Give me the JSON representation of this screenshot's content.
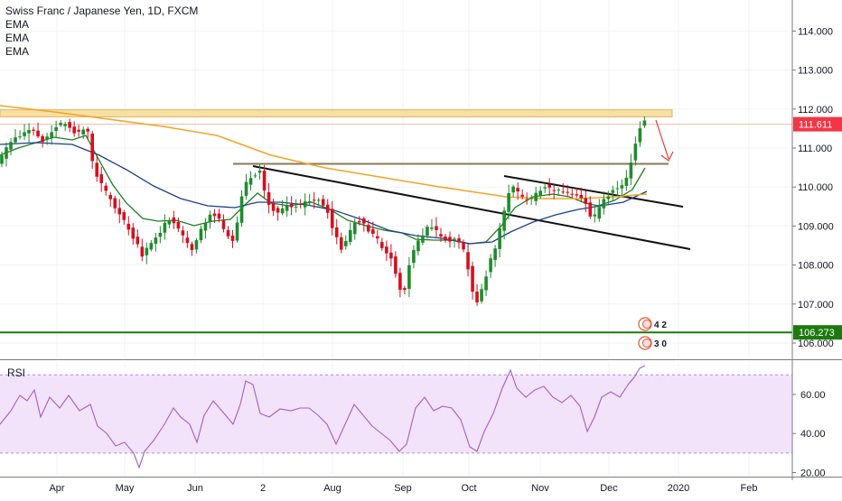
{
  "chart_data": {
    "type": "candlestick",
    "title": "Swiss Franc / Japanese Yen, 1D, FXCM",
    "indicators": [
      "EMA",
      "EMA",
      "EMA"
    ],
    "price_axis": {
      "range": [
        105.75,
        115.0
      ],
      "ticks": [
        "114.000",
        "113.000",
        "112.000",
        "111.000",
        "110.000",
        "109.000",
        "108.000",
        "107.000",
        "106.000"
      ],
      "current_price": {
        "label": "111.611",
        "value": 111.611,
        "color": "#f23645"
      },
      "level": {
        "label": "106.273",
        "value": 106.273,
        "color": "#1b7a0e"
      }
    },
    "time_axis": {
      "labels": [
        "Apr",
        "May",
        "Jun",
        "2",
        "Aug",
        "Sep",
        "Oct",
        "Nov",
        "Dec",
        "2020",
        "Feb"
      ]
    },
    "rsi": {
      "label": "RSI",
      "range": [
        15,
        80
      ],
      "ticks": [
        "60.00",
        "40.00",
        "20.00"
      ],
      "band": [
        30,
        70
      ]
    },
    "resistance_zone": {
      "low": 111.8,
      "high": 111.98
    },
    "markers": {
      "top": "4 2",
      "bottom": "3 0"
    },
    "colors": {
      "up": "#1e8c2c",
      "down": "#d3101f",
      "ema_fast": "#1e7d22",
      "ema_mid": "#1c3f8c",
      "ema_slow": "#f2a624",
      "rsi_line": "#a35cc9",
      "rsi_band": "#f2e3fb",
      "zone": "#f8dfa4"
    }
  }
}
